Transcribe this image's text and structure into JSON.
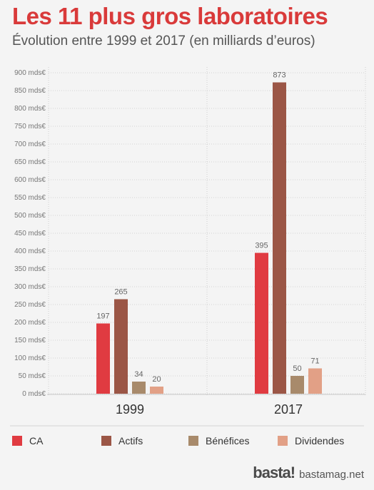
{
  "title": "Les 11 plus gros laboratoires",
  "subtitle": "Évolution entre 1999 et 2017 (en milliards d’euros)",
  "colors": {
    "CA": "#e03b41",
    "Actifs": "#9b5646",
    "Bénéfices": "#a88a6b",
    "Dividendes": "#e2a086",
    "title": "#d93a3a"
  },
  "chart_data": {
    "type": "bar",
    "categories": [
      "1999",
      "2017"
    ],
    "series": [
      {
        "name": "CA",
        "values": [
          197,
          395
        ]
      },
      {
        "name": "Actifs",
        "values": [
          265,
          873
        ]
      },
      {
        "name": "Bénéfices",
        "values": [
          34,
          50
        ]
      },
      {
        "name": "Dividendes",
        "values": [
          20,
          71
        ]
      }
    ],
    "ylim": [
      0,
      900
    ],
    "ytick_step": 50,
    "ytick_suffix": " mds€",
    "grid": true,
    "legend_position": "bottom"
  },
  "branding": {
    "logo": "basta!",
    "url": "bastamag.net"
  }
}
